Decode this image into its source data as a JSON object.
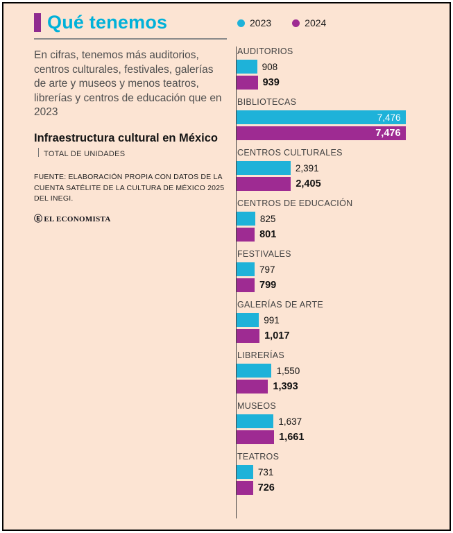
{
  "header": {
    "title": "Qué tenemos",
    "accent_color": "#8f2b8f",
    "title_color": "#00b1d9"
  },
  "intro_text": "En cifras, tenemos más auditorios, centros culturales, festivales, galerías de arte y museos y menos teatros, librerías y centros de educación que en 2023",
  "subtitle": "Infraestructura cultural en México",
  "subtitle_note": "TOTAL DE UNIDADES",
  "source": "FUENTE: ELABORACIÓN PROPIA CON DATOS DE LA CUENTA SATÉLITE DE LA CULTURA DE MÉXICO 2025 DEL INEGI.",
  "logo_mark": "Ⓔ",
  "logo_text": "EL ECONOMISTA",
  "background_color": "#fce4d3",
  "chart_data": {
    "type": "bar",
    "orientation": "horizontal",
    "title": "Infraestructura cultural en México — Total de unidades",
    "legend_position": "top",
    "max_value": 7476,
    "categories": [
      "AUDITORIOS",
      "BIBLIOTECAS",
      "CENTROS CULTURALES",
      "CENTROS DE EDUCACIÓN",
      "FESTIVALES",
      "GALERÍAS DE ARTE",
      "LIBRERÍAS",
      "MUSEOS",
      "TEATROS"
    ],
    "series": [
      {
        "name": "2023",
        "color": "#1eb2d9",
        "values": [
          908,
          7476,
          2391,
          825,
          797,
          991,
          1550,
          1637,
          731
        ],
        "labels": [
          "908",
          "7,476",
          "2,391",
          "825",
          "797",
          "991",
          "1,550",
          "1,637",
          "731"
        ]
      },
      {
        "name": "2024",
        "color": "#9e2b92",
        "values": [
          939,
          7476,
          2405,
          801,
          799,
          1017,
          1393,
          1661,
          726
        ],
        "labels": [
          "939",
          "7,476",
          "2,405",
          "801",
          "799",
          "1,017",
          "1,393",
          "1,661",
          "726"
        ]
      }
    ]
  }
}
